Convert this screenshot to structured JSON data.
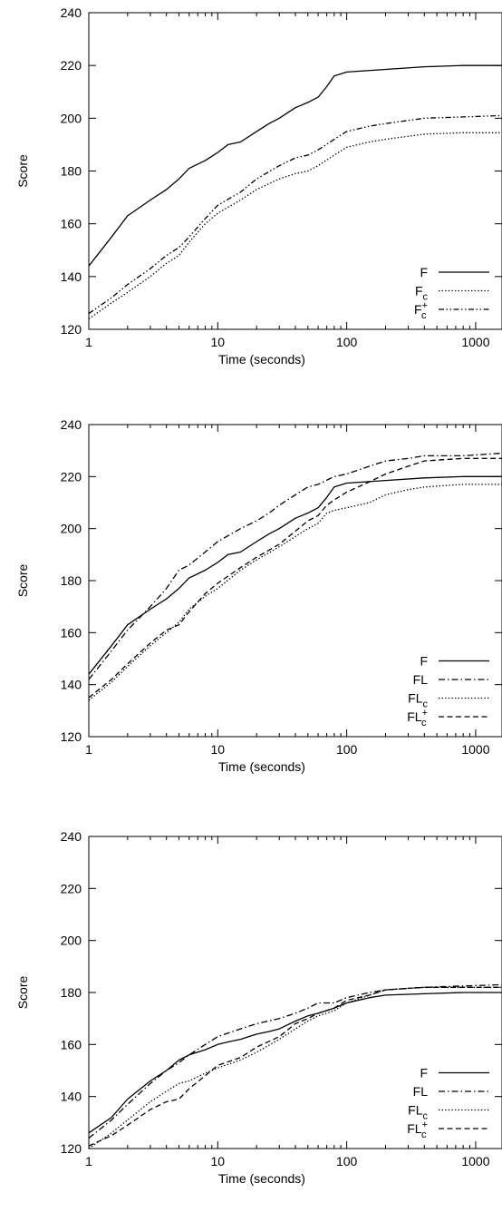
{
  "chart_data": [
    {
      "type": "line",
      "xlabel": "Time (seconds)",
      "ylabel": "Score",
      "xscale": "log",
      "xlim": [
        1,
        1600
      ],
      "ylim": [
        120,
        240
      ],
      "xticks": [
        "1",
        "10",
        "100",
        "1000"
      ],
      "yticks": [
        "120",
        "140",
        "160",
        "180",
        "200",
        "220",
        "240"
      ],
      "grid": false,
      "legend_position": "bottom-right",
      "series": [
        {
          "name": "F",
          "sub": "",
          "sup": "",
          "dash": "solid",
          "points": [
            [
              1,
              144
            ],
            [
              1.5,
              155
            ],
            [
              2,
              163
            ],
            [
              3,
              169
            ],
            [
              4,
              173
            ],
            [
              5,
              177
            ],
            [
              6,
              181
            ],
            [
              8,
              184
            ],
            [
              10,
              187
            ],
            [
              12,
              190
            ],
            [
              15,
              191
            ],
            [
              20,
              195
            ],
            [
              25,
              198
            ],
            [
              30,
              200
            ],
            [
              40,
              204
            ],
            [
              50,
              206
            ],
            [
              60,
              208
            ],
            [
              70,
              212
            ],
            [
              80,
              216
            ],
            [
              100,
              217.5
            ],
            [
              200,
              218.5
            ],
            [
              400,
              219.5
            ],
            [
              800,
              220
            ],
            [
              1600,
              220
            ]
          ]
        },
        {
          "name": "F",
          "sub": "c",
          "sup": "",
          "dash": "dot",
          "points": [
            [
              1,
              124
            ],
            [
              1.5,
              130
            ],
            [
              2,
              134
            ],
            [
              3,
              140
            ],
            [
              4,
              145
            ],
            [
              5,
              148
            ],
            [
              6,
              153
            ],
            [
              8,
              160
            ],
            [
              10,
              164
            ],
            [
              15,
              169
            ],
            [
              20,
              173
            ],
            [
              30,
              177
            ],
            [
              40,
              179
            ],
            [
              50,
              180
            ],
            [
              60,
              182
            ],
            [
              80,
              186
            ],
            [
              100,
              189
            ],
            [
              150,
              191
            ],
            [
              200,
              192
            ],
            [
              400,
              194
            ],
            [
              800,
              194.5
            ],
            [
              1600,
              194.5
            ]
          ]
        },
        {
          "name": "F",
          "sub": "c",
          "sup": "+",
          "dash": "dashdotdot",
          "points": [
            [
              1,
              126
            ],
            [
              1.5,
              132
            ],
            [
              2,
              137
            ],
            [
              3,
              143
            ],
            [
              4,
              148
            ],
            [
              5,
              151
            ],
            [
              6,
              155
            ],
            [
              8,
              162
            ],
            [
              10,
              167
            ],
            [
              15,
              172
            ],
            [
              20,
              177
            ],
            [
              30,
              182
            ],
            [
              40,
              185
            ],
            [
              50,
              186
            ],
            [
              60,
              188
            ],
            [
              80,
              192
            ],
            [
              100,
              195
            ],
            [
              150,
              197
            ],
            [
              200,
              198
            ],
            [
              400,
              200
            ],
            [
              800,
              200.5
            ],
            [
              1600,
              201
            ]
          ]
        }
      ]
    },
    {
      "type": "line",
      "xlabel": "Time (seconds)",
      "ylabel": "Score",
      "xscale": "log",
      "xlim": [
        1,
        1600
      ],
      "ylim": [
        120,
        240
      ],
      "xticks": [
        "1",
        "10",
        "100",
        "1000"
      ],
      "yticks": [
        "120",
        "140",
        "160",
        "180",
        "200",
        "220",
        "240"
      ],
      "grid": false,
      "legend_position": "bottom-right",
      "series": [
        {
          "name": "F",
          "sub": "",
          "sup": "",
          "dash": "solid",
          "points": [
            [
              1,
              144
            ],
            [
              1.5,
              155
            ],
            [
              2,
              163
            ],
            [
              3,
              169
            ],
            [
              4,
              173
            ],
            [
              5,
              177
            ],
            [
              6,
              181
            ],
            [
              8,
              184
            ],
            [
              10,
              187
            ],
            [
              12,
              190
            ],
            [
              15,
              191
            ],
            [
              20,
              195
            ],
            [
              25,
              198
            ],
            [
              30,
              200
            ],
            [
              40,
              204
            ],
            [
              50,
              206
            ],
            [
              60,
              208
            ],
            [
              70,
              212
            ],
            [
              80,
              216
            ],
            [
              100,
              217.5
            ],
            [
              200,
              218.5
            ],
            [
              400,
              219.5
            ],
            [
              800,
              220
            ],
            [
              1600,
              220
            ]
          ]
        },
        {
          "name": "FL",
          "sub": "",
          "sup": "",
          "dash": "dashdot",
          "points": [
            [
              1,
              142
            ],
            [
              1.5,
              153
            ],
            [
              2,
              161
            ],
            [
              3,
              170
            ],
            [
              4,
              177
            ],
            [
              5,
              184
            ],
            [
              6,
              186
            ],
            [
              8,
              191
            ],
            [
              10,
              195
            ],
            [
              15,
              200
            ],
            [
              20,
              203
            ],
            [
              25,
              206
            ],
            [
              30,
              209
            ],
            [
              40,
              213
            ],
            [
              50,
              216
            ],
            [
              60,
              217
            ],
            [
              80,
              220
            ],
            [
              100,
              221
            ],
            [
              150,
              224
            ],
            [
              200,
              226
            ],
            [
              300,
              227
            ],
            [
              400,
              228
            ],
            [
              800,
              228
            ],
            [
              1600,
              229
            ]
          ]
        },
        {
          "name": "FL",
          "sub": "c",
          "sup": "",
          "dash": "dot",
          "points": [
            [
              1,
              134
            ],
            [
              1.5,
              141
            ],
            [
              2,
              147
            ],
            [
              3,
              155
            ],
            [
              4,
              160
            ],
            [
              5,
              164
            ],
            [
              6,
              169
            ],
            [
              8,
              174
            ],
            [
              10,
              177
            ],
            [
              15,
              184
            ],
            [
              20,
              188
            ],
            [
              30,
              193
            ],
            [
              40,
              197
            ],
            [
              50,
              200
            ],
            [
              60,
              202
            ],
            [
              70,
              206
            ],
            [
              80,
              207
            ],
            [
              100,
              208
            ],
            [
              150,
              210
            ],
            [
              200,
              213
            ],
            [
              300,
              215
            ],
            [
              400,
              216
            ],
            [
              800,
              217
            ],
            [
              1600,
              217
            ]
          ]
        },
        {
          "name": "FL",
          "sub": "c",
          "sup": "+",
          "dash": "dash",
          "points": [
            [
              1,
              135
            ],
            [
              1.5,
              142
            ],
            [
              2,
              148
            ],
            [
              3,
              156
            ],
            [
              4,
              161
            ],
            [
              5,
              163
            ],
            [
              6,
              168
            ],
            [
              8,
              175
            ],
            [
              10,
              179
            ],
            [
              15,
              185
            ],
            [
              20,
              189
            ],
            [
              30,
              194
            ],
            [
              40,
              199
            ],
            [
              50,
              203
            ],
            [
              60,
              205
            ],
            [
              70,
              209
            ],
            [
              80,
              211
            ],
            [
              100,
              214
            ],
            [
              150,
              218
            ],
            [
              200,
              221
            ],
            [
              300,
              224
            ],
            [
              400,
              226
            ],
            [
              800,
              227
            ],
            [
              1600,
              227
            ]
          ]
        }
      ]
    },
    {
      "type": "line",
      "xlabel": "Time (seconds)",
      "ylabel": "Score",
      "xscale": "log",
      "xlim": [
        1,
        1600
      ],
      "ylim": [
        120,
        240
      ],
      "xticks": [
        "1",
        "10",
        "100",
        "1000"
      ],
      "yticks": [
        "120",
        "140",
        "160",
        "180",
        "200",
        "220",
        "240"
      ],
      "grid": false,
      "legend_position": "bottom-right",
      "series": [
        {
          "name": "F",
          "sub": "",
          "sup": "",
          "dash": "solid",
          "points": [
            [
              1,
              126
            ],
            [
              1.5,
              132
            ],
            [
              2,
              139
            ],
            [
              3,
              146
            ],
            [
              4,
              150
            ],
            [
              5,
              154
            ],
            [
              6,
              156
            ],
            [
              8,
              158
            ],
            [
              10,
              160
            ],
            [
              12,
              161
            ],
            [
              15,
              162
            ],
            [
              20,
              164
            ],
            [
              25,
              165
            ],
            [
              30,
              166
            ],
            [
              40,
              169
            ],
            [
              50,
              171
            ],
            [
              60,
              172
            ],
            [
              80,
              174
            ],
            [
              100,
              176
            ],
            [
              150,
              178
            ],
            [
              200,
              179
            ],
            [
              400,
              179.5
            ],
            [
              800,
              180
            ],
            [
              1600,
              180
            ]
          ]
        },
        {
          "name": "FL",
          "sub": "",
          "sup": "",
          "dash": "dashdot",
          "points": [
            [
              1,
              124
            ],
            [
              1.5,
              131
            ],
            [
              2,
              137
            ],
            [
              3,
              145
            ],
            [
              4,
              150
            ],
            [
              5,
              153
            ],
            [
              6,
              156
            ],
            [
              8,
              160
            ],
            [
              10,
              163
            ],
            [
              15,
              166
            ],
            [
              20,
              168
            ],
            [
              30,
              170
            ],
            [
              40,
              172
            ],
            [
              50,
              174
            ],
            [
              60,
              176
            ],
            [
              80,
              176
            ],
            [
              100,
              178
            ],
            [
              150,
              180
            ],
            [
              200,
              181
            ],
            [
              400,
              182
            ],
            [
              800,
              182.5
            ],
            [
              1600,
              183
            ]
          ]
        },
        {
          "name": "FL",
          "sub": "c",
          "sup": "",
          "dash": "dot",
          "points": [
            [
              1,
              120
            ],
            [
              1.5,
              126
            ],
            [
              2,
              131
            ],
            [
              3,
              138
            ],
            [
              4,
              142
            ],
            [
              5,
              145
            ],
            [
              6,
              146
            ],
            [
              8,
              149
            ],
            [
              10,
              151
            ],
            [
              15,
              154
            ],
            [
              20,
              157
            ],
            [
              30,
              162
            ],
            [
              40,
              166
            ],
            [
              50,
              169
            ],
            [
              60,
              171
            ],
            [
              80,
              173
            ],
            [
              100,
              176
            ],
            [
              150,
              179
            ],
            [
              200,
              181
            ],
            [
              400,
              182
            ],
            [
              800,
              182
            ],
            [
              1600,
              182
            ]
          ]
        },
        {
          "name": "FL",
          "sub": "c",
          "sup": "+",
          "dash": "dash",
          "points": [
            [
              1,
              121
            ],
            [
              1.5,
              125
            ],
            [
              2,
              129
            ],
            [
              3,
              135
            ],
            [
              4,
              138
            ],
            [
              5,
              139
            ],
            [
              6,
              143
            ],
            [
              8,
              148
            ],
            [
              10,
              152
            ],
            [
              15,
              155
            ],
            [
              20,
              159
            ],
            [
              30,
              163
            ],
            [
              40,
              168
            ],
            [
              50,
              170
            ],
            [
              60,
              172
            ],
            [
              80,
              174
            ],
            [
              100,
              177
            ],
            [
              150,
              179
            ],
            [
              200,
              181
            ],
            [
              400,
              182
            ],
            [
              800,
              182
            ],
            [
              1600,
              182
            ]
          ]
        }
      ]
    }
  ]
}
